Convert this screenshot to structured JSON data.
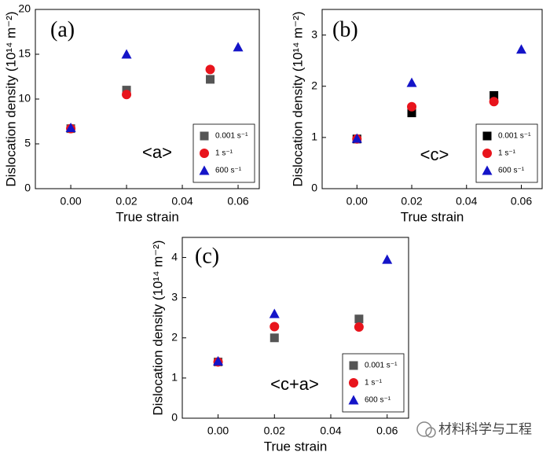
{
  "chart_data": [
    {
      "type": "scatter",
      "panel_label": "(a)",
      "annotation": "<a>",
      "x_label": "True strain",
      "y_label": "Dislocation density (10¹⁴ m⁻²)",
      "xlim": [
        -0.0127,
        0.0676
      ],
      "ylim": [
        0,
        20
      ],
      "xticks": [
        {
          "value": 0,
          "label": "0.00"
        },
        {
          "value": 0.02,
          "label": "0.02"
        },
        {
          "value": 0.04,
          "label": "0.04"
        },
        {
          "value": 0.06,
          "label": "0.06"
        }
      ],
      "yticks": [
        0,
        5,
        10,
        15,
        20
      ],
      "legend": "lower right",
      "series": [
        {
          "name": "0.001 s⁻¹",
          "color": "#555555",
          "marker": "square",
          "x": [
            0,
            0.02,
            0.05
          ],
          "values": [
            6.7,
            11.0,
            12.2
          ]
        },
        {
          "name": "1 s⁻¹",
          "color": "#e8141c",
          "marker": "circle",
          "x": [
            0,
            0.02,
            0.05
          ],
          "values": [
            6.7,
            10.5,
            13.3
          ]
        },
        {
          "name": "600 s⁻¹",
          "color": "#1414c8",
          "marker": "triangle",
          "x": [
            0,
            0.02,
            0.06
          ],
          "values": [
            6.8,
            15.0,
            15.8
          ]
        }
      ]
    },
    {
      "type": "scatter",
      "panel_label": "(b)",
      "annotation": "<c>",
      "x_label": "True strain",
      "y_label": "Dislocation density (10¹⁴ m⁻²)",
      "xlim": [
        -0.0127,
        0.0676
      ],
      "ylim": [
        0,
        3.5
      ],
      "xticks": [
        {
          "value": 0,
          "label": "0.00"
        },
        {
          "value": 0.02,
          "label": "0.02"
        },
        {
          "value": 0.04,
          "label": "0.04"
        },
        {
          "value": 0.06,
          "label": "0.06"
        }
      ],
      "yticks": [
        0,
        1,
        2,
        3
      ],
      "legend": "lower right",
      "series": [
        {
          "name": "0.001 s⁻¹",
          "color": "#000000",
          "marker": "square",
          "x": [
            0,
            0.02,
            0.05
          ],
          "values": [
            0.97,
            1.48,
            1.82
          ]
        },
        {
          "name": "1 s⁻¹",
          "color": "#e8141c",
          "marker": "circle",
          "x": [
            0,
            0.02,
            0.05
          ],
          "values": [
            0.97,
            1.6,
            1.7
          ]
        },
        {
          "name": "600 s⁻¹",
          "color": "#1414c8",
          "marker": "triangle",
          "x": [
            0,
            0.02,
            0.06
          ],
          "values": [
            0.98,
            2.07,
            2.72
          ]
        }
      ]
    },
    {
      "type": "scatter",
      "panel_label": "(c)",
      "annotation": "<c+a>",
      "x_label": "True strain",
      "y_label": "Dislocation density (10¹⁴ m⁻²)",
      "xlim": [
        -0.0127,
        0.0676
      ],
      "ylim": [
        0,
        4.5
      ],
      "xticks": [
        {
          "value": 0,
          "label": "0.00"
        },
        {
          "value": 0.02,
          "label": "0.02"
        },
        {
          "value": 0.04,
          "label": "0.04"
        },
        {
          "value": 0.06,
          "label": "0.06"
        }
      ],
      "yticks": [
        0,
        1,
        2,
        3,
        4
      ],
      "legend": "lower right",
      "series": [
        {
          "name": "0.001 s⁻¹",
          "color": "#555555",
          "marker": "square",
          "x": [
            0,
            0.02,
            0.05
          ],
          "values": [
            1.4,
            2.0,
            2.47
          ]
        },
        {
          "name": "1 s⁻¹",
          "color": "#e8141c",
          "marker": "circle",
          "x": [
            0,
            0.02,
            0.05
          ],
          "values": [
            1.4,
            2.28,
            2.27
          ]
        },
        {
          "name": "600 s⁻¹",
          "color": "#1414c8",
          "marker": "triangle",
          "x": [
            0,
            0.02,
            0.06
          ],
          "values": [
            1.42,
            2.6,
            3.95
          ]
        }
      ]
    }
  ],
  "watermark": "材料科学与工程"
}
